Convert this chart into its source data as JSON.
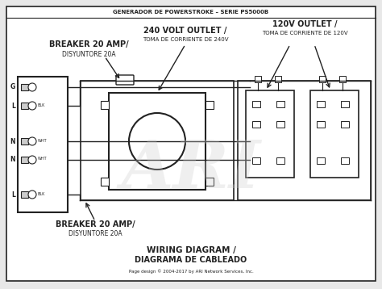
{
  "bg_color": "#e8e8e8",
  "line_color": "#222222",
  "title_top": "GENERADOR DE POWERSTROKE – SERIE PS5000B",
  "label_breaker_top": "BREAKER 20 AMP/\nDISYUNTORE 20A",
  "label_240v": "240 VOLT OUTLET /\nTOMA DE CORRIENTE DE 240V",
  "label_120v": "120V OUTLET /\nTOMA DE CORRIENTE DE 120V",
  "label_breaker_bot": "BREAKER 20 AMP/\nDISYUNTORE 20A",
  "label_wiring": "WIRING DIAGRAM /\nDIAGRAMA DE CABLEADO",
  "label_footer": "Page design © 2004-2017 by ARI Network Services, Inc.",
  "watermark": "ARI"
}
